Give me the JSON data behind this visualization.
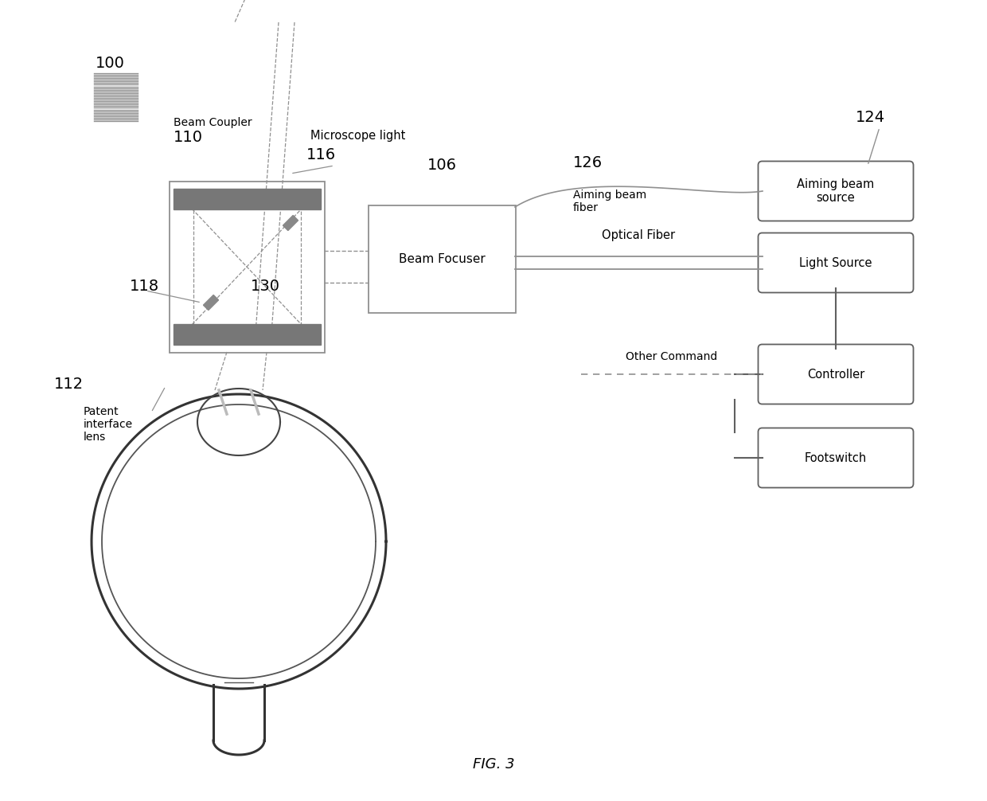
{
  "bg_color": "#ffffff",
  "line_color": "#404040",
  "gray_color": "#909090",
  "dark_gray": "#606060",
  "med_gray": "#777777",
  "bar_gray": "#888888",
  "fig_label": "FIG. 3",
  "ref_100": "100",
  "ref_106": "106",
  "ref_110": "110",
  "ref_112": "112",
  "ref_116": "116",
  "ref_118": "118",
  "ref_124": "124",
  "ref_126": "126",
  "ref_130": "130",
  "label_beam_coupler": "Beam Coupler",
  "label_beam_focuser": "Beam Focuser",
  "label_patient_interface_lens": "Patent\ninterface\nlens",
  "label_microscope_light": "Microscope light",
  "label_aiming_beam_fiber": "Aiming beam\nfiber",
  "label_aiming_beam_source": "Aiming beam\nsource",
  "label_light_source": "Light Source",
  "label_optical_fiber": "Optical Fiber",
  "label_controller": "Controller",
  "label_footswitch": "Footswitch",
  "label_other_command": "Other Command"
}
